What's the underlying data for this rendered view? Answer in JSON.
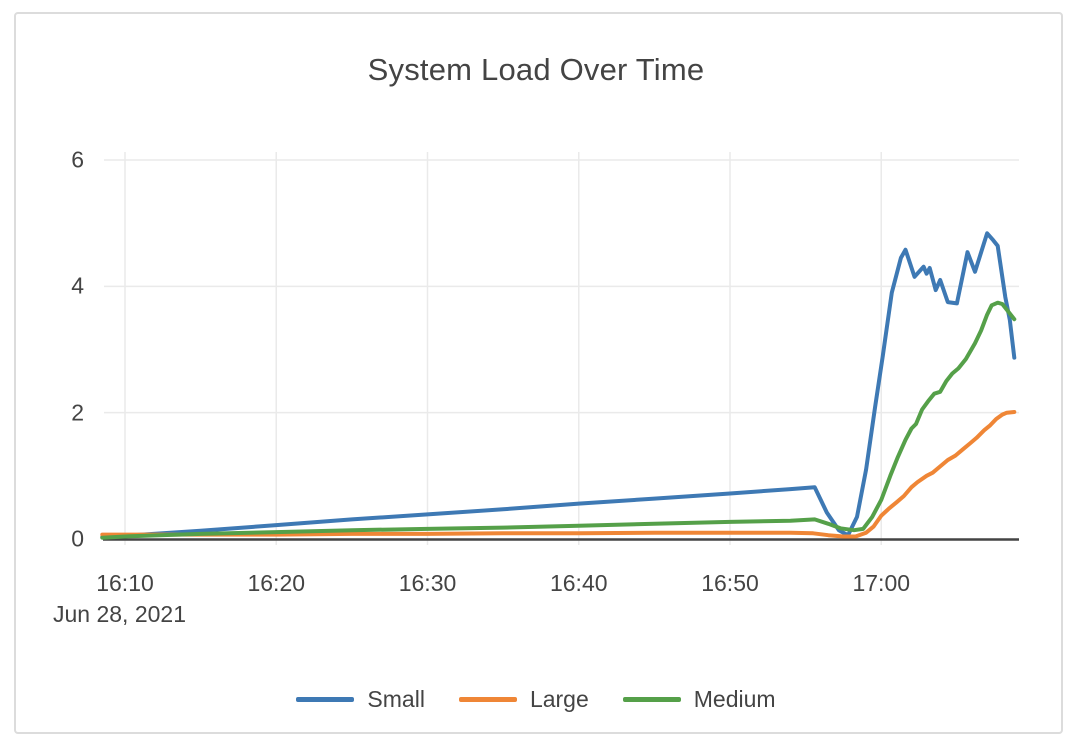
{
  "chart_data": {
    "type": "line",
    "title": "System Load Over Time",
    "xlabel": "",
    "ylabel": "",
    "x_axis": {
      "date_label": "Jun 28, 2021",
      "unit": "minutes after 16:00",
      "range": [
        8.3,
        69.3
      ],
      "ticks": [
        {
          "t": 10,
          "label": "16:10"
        },
        {
          "t": 20,
          "label": "16:20"
        },
        {
          "t": 30,
          "label": "16:30"
        },
        {
          "t": 40,
          "label": "16:40"
        },
        {
          "t": 50,
          "label": "16:50"
        },
        {
          "t": 60,
          "label": "17:00"
        }
      ]
    },
    "y_axis": {
      "range": [
        0,
        6.15
      ],
      "ticks": [
        {
          "v": 0,
          "label": "0"
        },
        {
          "v": 2,
          "label": "2"
        },
        {
          "v": 4,
          "label": "4"
        },
        {
          "v": 6,
          "label": "6"
        }
      ]
    },
    "grid": true,
    "legend_position": "bottom-center",
    "colors": {
      "grid": "#eaeaea",
      "axis_line": "#444444",
      "text": "#444444",
      "card_border": "#dcdcdc"
    },
    "series": [
      {
        "name": "Small",
        "color": "#3e79b4",
        "points": [
          [
            8.5,
            0.03
          ],
          [
            10,
            0.05
          ],
          [
            15,
            0.13
          ],
          [
            20,
            0.22
          ],
          [
            25,
            0.31
          ],
          [
            30,
            0.39
          ],
          [
            35,
            0.47
          ],
          [
            40,
            0.56
          ],
          [
            45,
            0.64
          ],
          [
            50,
            0.72
          ],
          [
            54,
            0.79
          ],
          [
            55.6,
            0.82
          ],
          [
            56.4,
            0.42
          ],
          [
            57.2,
            0.14
          ],
          [
            57.8,
            0.06
          ],
          [
            58.4,
            0.35
          ],
          [
            59,
            1.1
          ],
          [
            59.6,
            2.1
          ],
          [
            60.1,
            2.9
          ],
          [
            60.7,
            3.9
          ],
          [
            61.3,
            4.45
          ],
          [
            61.6,
            4.58
          ],
          [
            62.2,
            4.15
          ],
          [
            62.8,
            4.31
          ],
          [
            63.0,
            4.2
          ],
          [
            63.2,
            4.29
          ],
          [
            63.6,
            3.94
          ],
          [
            63.9,
            4.1
          ],
          [
            64.4,
            3.75
          ],
          [
            65.0,
            3.73
          ],
          [
            65.7,
            4.54
          ],
          [
            66.2,
            4.23
          ],
          [
            67.0,
            4.84
          ],
          [
            67.4,
            4.73
          ],
          [
            67.7,
            4.64
          ],
          [
            68.2,
            3.83
          ],
          [
            68.5,
            3.47
          ],
          [
            68.8,
            2.87
          ]
        ]
      },
      {
        "name": "Large",
        "color": "#ef8636",
        "points": [
          [
            8.5,
            0.07
          ],
          [
            12,
            0.07
          ],
          [
            16,
            0.07
          ],
          [
            20,
            0.07
          ],
          [
            25,
            0.08
          ],
          [
            30,
            0.08
          ],
          [
            35,
            0.09
          ],
          [
            40,
            0.09
          ],
          [
            45,
            0.1
          ],
          [
            50,
            0.1
          ],
          [
            54,
            0.1
          ],
          [
            55.5,
            0.09
          ],
          [
            56.5,
            0.06
          ],
          [
            57.5,
            0.04
          ],
          [
            58.3,
            0.04
          ],
          [
            59,
            0.1
          ],
          [
            59.5,
            0.2
          ],
          [
            60,
            0.37
          ],
          [
            60.5,
            0.48
          ],
          [
            61,
            0.58
          ],
          [
            61.5,
            0.68
          ],
          [
            62,
            0.82
          ],
          [
            62.4,
            0.9
          ],
          [
            63,
            1.0
          ],
          [
            63.4,
            1.05
          ],
          [
            63.9,
            1.15
          ],
          [
            64.4,
            1.25
          ],
          [
            64.9,
            1.32
          ],
          [
            65.4,
            1.42
          ],
          [
            65.9,
            1.52
          ],
          [
            66.3,
            1.6
          ],
          [
            66.8,
            1.72
          ],
          [
            67.2,
            1.8
          ],
          [
            67.6,
            1.9
          ],
          [
            68,
            1.97
          ],
          [
            68.3,
            2.0
          ],
          [
            68.8,
            2.01
          ]
        ]
      },
      {
        "name": "Medium",
        "color": "#55a049",
        "points": [
          [
            8.5,
            0.02
          ],
          [
            10,
            0.04
          ],
          [
            15,
            0.08
          ],
          [
            20,
            0.11
          ],
          [
            25,
            0.14
          ],
          [
            30,
            0.16
          ],
          [
            35,
            0.18
          ],
          [
            40,
            0.21
          ],
          [
            45,
            0.24
          ],
          [
            50,
            0.27
          ],
          [
            54,
            0.29
          ],
          [
            55.6,
            0.31
          ],
          [
            56.5,
            0.24
          ],
          [
            57.3,
            0.17
          ],
          [
            58.2,
            0.14
          ],
          [
            58.8,
            0.16
          ],
          [
            59.4,
            0.35
          ],
          [
            60,
            0.62
          ],
          [
            60.6,
            1.0
          ],
          [
            61.1,
            1.3
          ],
          [
            61.6,
            1.57
          ],
          [
            62,
            1.75
          ],
          [
            62.3,
            1.82
          ],
          [
            62.7,
            2.05
          ],
          [
            63.1,
            2.18
          ],
          [
            63.5,
            2.3
          ],
          [
            63.9,
            2.33
          ],
          [
            64.3,
            2.5
          ],
          [
            64.7,
            2.62
          ],
          [
            65.1,
            2.7
          ],
          [
            65.6,
            2.85
          ],
          [
            66.2,
            3.1
          ],
          [
            66.6,
            3.3
          ],
          [
            67,
            3.55
          ],
          [
            67.3,
            3.7
          ],
          [
            67.7,
            3.74
          ],
          [
            68,
            3.72
          ],
          [
            68.4,
            3.6
          ],
          [
            68.8,
            3.48
          ]
        ]
      }
    ]
  }
}
